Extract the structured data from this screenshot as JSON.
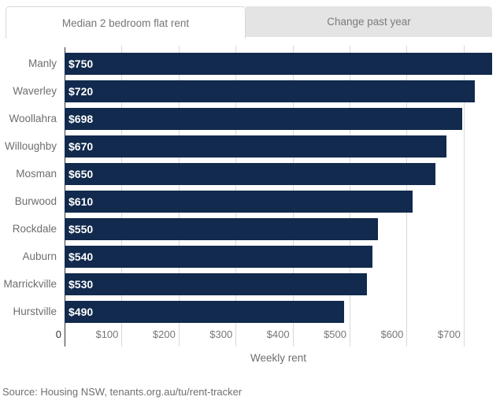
{
  "tabs": [
    {
      "label": "Median 2 bedroom flat rent",
      "active": true
    },
    {
      "label": "Change past year",
      "active": false
    }
  ],
  "chart_data": {
    "type": "bar",
    "orientation": "horizontal",
    "categories": [
      "Manly",
      "Waverley",
      "Woollahra",
      "Willoughby",
      "Mosman",
      "Burwood",
      "Rockdale",
      "Auburn",
      "Marrickville",
      "Hurstville"
    ],
    "values": [
      750,
      720,
      698,
      670,
      650,
      610,
      550,
      540,
      530,
      490
    ],
    "value_labels": [
      "$750",
      "$720",
      "$698",
      "$670",
      "$650",
      "$610",
      "$550",
      "$540",
      "$530",
      "$490"
    ],
    "xlabel": "Weekly rent",
    "x_tick_labels": [
      "0",
      "$100",
      "$200",
      "$300",
      "$400",
      "$500",
      "$600",
      "$700"
    ],
    "x_tick_values": [
      0,
      100,
      200,
      300,
      400,
      500,
      600,
      700
    ],
    "xlim": [
      0,
      750
    ],
    "grid": true,
    "legend": "none",
    "bar_color": "#112a4d",
    "value_label_color": "#ffffff",
    "grid_color": "#d9d9d9",
    "axis_color": "#333333",
    "label_color": "#6e6e6e"
  },
  "source": "Source: Housing NSW, tenants.org.au/tu/rent-tracker"
}
